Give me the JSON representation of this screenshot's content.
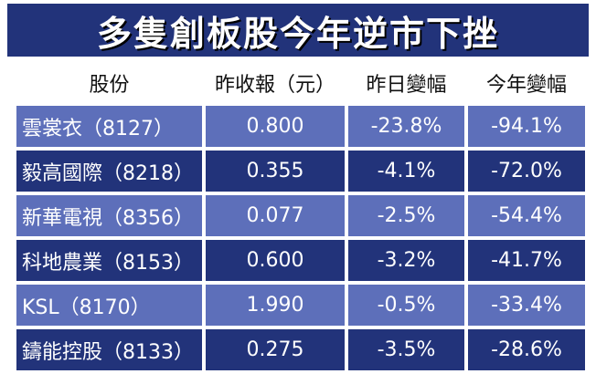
{
  "title": "多隻創板股今年逆市下挫",
  "headers": [
    "股份",
    "昨收報（元）",
    "昨日變幅",
    "今年變幅"
  ],
  "rows": [
    {
      "name": "雲裳衣（8127）",
      "close": "0.800",
      "day_change": "-23.8%",
      "ytd_change": "-94.1%"
    },
    {
      "name": "毅高國際（8218）",
      "close": "0.355",
      "day_change": "-4.1%",
      "ytd_change": "-72.0%"
    },
    {
      "name": "新華電視（8356）",
      "close": "0.077",
      "day_change": "-2.5%",
      "ytd_change": "-54.4%"
    },
    {
      "name": "科地農業（8153）",
      "close": "0.600",
      "day_change": "-3.2%",
      "ytd_change": "-41.7%"
    },
    {
      "name": "KSL（8170）",
      "close": "1.990",
      "day_change": "-0.5%",
      "ytd_change": "-33.4%"
    },
    {
      "name": "鑄能控股（8133）",
      "close": "0.275",
      "day_change": "-3.5%",
      "ytd_change": "-28.6%"
    }
  ],
  "colors": {
    "title_bg": "#22337a",
    "row_light": "#5d6fba",
    "row_dark": "#22337a",
    "text_light": "#ffffff",
    "header_text": "#111111"
  }
}
